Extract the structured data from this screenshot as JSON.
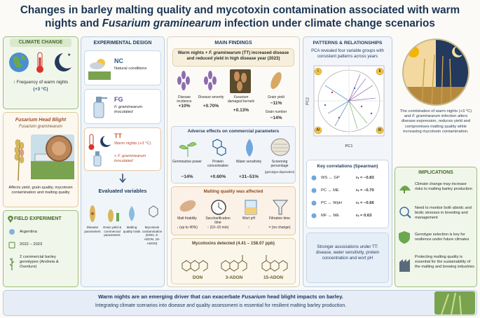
{
  "title": {
    "part1": "Changes in barley malting quality and mycotoxin contamination associated with warm nights and ",
    "italic": "Fusarium graminearum",
    "part2": " infection under climate change scenarios"
  },
  "climate": {
    "heading": "CLIMATE CHANGE",
    "text": "↑ Frequency of warm nights",
    "value": "(+3 °C)"
  },
  "fhb": {
    "heading": "Fusarium Head Blight",
    "pathogen": "Fusarium graminearum",
    "text": "Affects yield, grain quality, mycotoxin contamination and malting quality"
  },
  "field": {
    "heading": "FIELD EXPERIMENT",
    "items": [
      "Argentina",
      "2022 – 2023",
      "2 commercial barley genotypes (Andreia & Overture)"
    ]
  },
  "design": {
    "heading": "EXPERIMENTAL DESIGN",
    "treatments": [
      {
        "code": "NC",
        "desc": "Natural conditions"
      },
      {
        "code": "FG",
        "desc": "F. graminearum inoculated"
      },
      {
        "code": "TT",
        "desc": "Warm nights (+3 °C)",
        "desc2": "+ F. graminearum inoculated"
      }
    ],
    "variables_heading": "Evaluated variables",
    "variables": [
      "Disease parameters",
      "Grain yield & commercial parameters",
      "Malting quality traits",
      "Mycotoxin contamination (DON, 3-ADON, 15-ADON)"
    ]
  },
  "findings": {
    "heading": "MAIN FINDINGS",
    "lead": "Warm nights + ",
    "lead_italic": "F. graminearum",
    "lead_rest": " (TT) increased disease and reduced yield in high disease year (2023)",
    "disease": [
      {
        "label": "Disease incidence",
        "value": "+10%"
      },
      {
        "label": "Disease severity",
        "value": "+0.70%"
      },
      {
        "label": "Fusarium damaged kernels",
        "value": "+0.13%"
      },
      {
        "label": "Grain yield",
        "value": "−11%"
      },
      {
        "label": "Grain number",
        "value": "−14%"
      }
    ],
    "commercial_heading": "Adverse effects on commercial parameters",
    "commercial": [
      {
        "label": "Germinative power",
        "value": "−14%"
      },
      {
        "label": "Protein concentration",
        "value": "+0.60%"
      },
      {
        "label": "Water sensitivity",
        "value": "+31–51%"
      },
      {
        "label": "Screening percentage",
        "value": "(genotype-dependent)"
      }
    ],
    "malting_heading": "Malting quality was affected",
    "malting": [
      {
        "label": "Malt friability",
        "value": "↓ (up to 40%)"
      },
      {
        "label": "Saccharification time",
        "value": "↑ (10–15 min)"
      },
      {
        "label": "Wort pH",
        "value": "↑"
      },
      {
        "label": "Filtration time",
        "value": "= (no change)"
      }
    ],
    "mycotoxin_heading": "Mycotoxins detected (4.41 – 158.07 ppb)",
    "mycotoxins": [
      "DON",
      "3-ADON",
      "15-ADON"
    ]
  },
  "patterns": {
    "heading": "PATTERNS & RELATIONSHIPS",
    "pca_text": "PCA revealed four variable groups with consistent patterns across years",
    "pc1": "PC1",
    "pc2": "PC2",
    "groups": [
      "I",
      "II",
      "III",
      "IV"
    ],
    "correlations_heading": "Key correlations (Spearman)",
    "correlations": [
      {
        "a": "WS",
        "b": "GP",
        "r": "rₛ = −0.83"
      },
      {
        "a": "PC",
        "b": "ME",
        "r": "rₛ = −0.70"
      },
      {
        "a": "PC",
        "b": "WpH",
        "r": "rₛ = −0.66"
      },
      {
        "a": "MF",
        "b": "ME",
        "r": "rₛ = 0.63"
      }
    ],
    "summary": "Stronger associations under TT: disease, water sensitivity, protein concentration and wort pH"
  },
  "conclusion": {
    "part1": "The combination of warm nights (+3 °C) and ",
    "italic": "F. graminearum",
    "part2": " infection alters disease expression, reduces yield and compromises malting quality while increasing mycotoxin contamination."
  },
  "implications": {
    "heading": "IMPLICATIONS",
    "items": [
      "Climate change may increase risks to malting barley production",
      "Need to monitor both abiotic and biotic stresses in breeding and management",
      "Genotype selection is key for resilience under future climates",
      "Protecting malting quality is essential for the sustainability of the malting and brewing industries"
    ]
  },
  "footer": {
    "part1": "Warm nights are an emerging driver that can exacerbate ",
    "italic": "Fusarium",
    "part2": " head blight impacts on barley.",
    "line2": "Integrating climate scenarios into disease and quality assessment is essential for resilient malting barley production."
  }
}
